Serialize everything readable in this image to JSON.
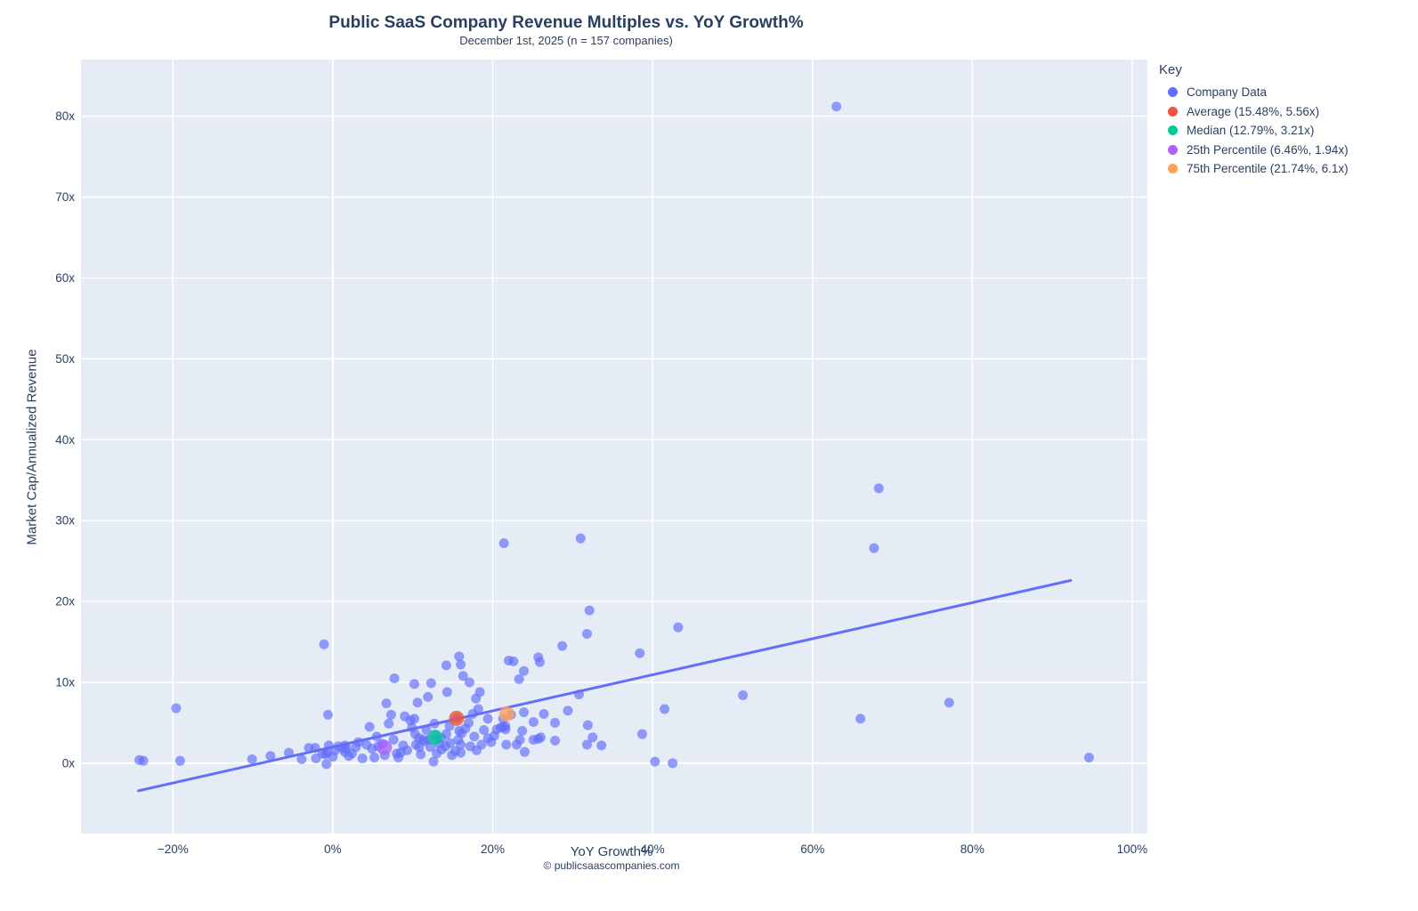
{
  "header": {
    "title": "Public SaaS Company Revenue Multiples vs. YoY Growth%",
    "subtitle": "December 1st, 2025 (n = 157 companies)"
  },
  "legend": {
    "title": "Key",
    "items": [
      {
        "label": "Company Data",
        "color": "#636efa"
      },
      {
        "label": "Average (15.48%, 5.56x)",
        "color": "#EF553B"
      },
      {
        "label": "Median (12.79%, 3.21x)",
        "color": "#00cc96"
      },
      {
        "label": "25th Percentile (6.46%, 1.94x)",
        "color": "#ab63fa"
      },
      {
        "label": "75th Percentile (21.74%, 6.1x)",
        "color": "#FFA15A"
      }
    ]
  },
  "footer": {
    "copyright": "© publicsaascompanies.com"
  },
  "chart_data": {
    "type": "scatter",
    "title": "Public SaaS Company Revenue Multiples vs. YoY Growth%",
    "subtitle": "December 1st, 2025 (n = 157 companies)",
    "xlabel": "YoY Growth%",
    "ylabel": "Market Cap/Annualized Revenue",
    "xlim": [
      -31.5,
      101.9
    ],
    "ylim": [
      -8.7,
      87.0
    ],
    "grid": true,
    "plot_bg": "#E5ECF6",
    "grid_color": "#ffffff",
    "font_color": "#2a3f5f",
    "legend_position": "top-right-outside",
    "xticks": [
      {
        "value": -20,
        "label": "−20%"
      },
      {
        "value": 0,
        "label": "0%"
      },
      {
        "value": 20,
        "label": "20%"
      },
      {
        "value": 40,
        "label": "40%"
      },
      {
        "value": 60,
        "label": "60%"
      },
      {
        "value": 80,
        "label": "80%"
      },
      {
        "value": 100,
        "label": "100%"
      }
    ],
    "yticks": [
      {
        "value": 0,
        "label": "0x"
      },
      {
        "value": 10,
        "label": "10x"
      },
      {
        "value": 20,
        "label": "20x"
      },
      {
        "value": 30,
        "label": "30x"
      },
      {
        "value": 40,
        "label": "40x"
      },
      {
        "value": 50,
        "label": "50x"
      },
      {
        "value": 60,
        "label": "60x"
      },
      {
        "value": 70,
        "label": "70x"
      },
      {
        "value": 80,
        "label": "80x"
      }
    ],
    "series": [
      {
        "name": "Company Data",
        "color": "#636efa",
        "opacity": 0.67,
        "size": 5.5,
        "points": [
          [
            -24.2,
            0.4
          ],
          [
            -23.7,
            0.3
          ],
          [
            -19.6,
            6.8
          ],
          [
            -19.1,
            0.3
          ],
          [
            -10.1,
            0.5
          ],
          [
            -7.8,
            0.9
          ],
          [
            -5.5,
            1.3
          ],
          [
            -3.9,
            0.5
          ],
          [
            -3.0,
            1.9
          ],
          [
            -2.2,
            1.9
          ],
          [
            -2.1,
            0.6
          ],
          [
            -1.3,
            1.2
          ],
          [
            -0.9,
            1.1
          ],
          [
            -0.7,
            1.3
          ],
          [
            -0.8,
            -0.1
          ],
          [
            -0.5,
            2.2
          ],
          [
            0.0,
            0.8
          ],
          [
            1.3,
            1.8
          ],
          [
            1.5,
            1.4
          ],
          [
            1.7,
            1.9
          ],
          [
            -1.1,
            14.7
          ],
          [
            -0.6,
            6.0
          ],
          [
            0.7,
            2.1
          ],
          [
            1.5,
            2.2
          ],
          [
            2.0,
            0.9
          ],
          [
            2.9,
            2.0
          ],
          [
            3.7,
            0.6
          ],
          [
            4.2,
            2.3
          ],
          [
            4.6,
            4.5
          ],
          [
            5.2,
            0.7
          ],
          [
            5.7,
            2.1
          ],
          [
            6.7,
            7.4
          ],
          [
            7.0,
            4.9
          ],
          [
            7.3,
            6.0
          ],
          [
            7.7,
            10.5
          ],
          [
            8.0,
            1.2
          ],
          [
            8.2,
            0.7
          ],
          [
            8.5,
            1.3
          ],
          [
            9.0,
            5.8
          ],
          [
            9.7,
            5.3
          ],
          [
            10.2,
            5.5
          ],
          [
            10.2,
            9.8
          ],
          [
            10.3,
            3.6
          ],
          [
            10.4,
            2.3
          ],
          [
            10.6,
            7.5
          ],
          [
            10.8,
            3.1
          ],
          [
            10.8,
            2.0
          ],
          [
            11.3,
            2.9
          ],
          [
            11.5,
            2.7
          ],
          [
            11.9,
            8.2
          ],
          [
            12.0,
            2.9
          ],
          [
            12.3,
            9.9
          ],
          [
            12.6,
            0.2
          ],
          [
            12.7,
            4.9
          ],
          [
            13.0,
            1.2
          ],
          [
            13.0,
            3.0
          ],
          [
            13.6,
            1.7
          ],
          [
            13.6,
            3.1
          ],
          [
            14.1,
            2.1
          ],
          [
            14.2,
            3.6
          ],
          [
            14.2,
            12.1
          ],
          [
            14.3,
            8.8
          ],
          [
            14.7,
            2.5
          ],
          [
            15.3,
            1.5
          ],
          [
            15.7,
            2.9
          ],
          [
            15.8,
            4.0
          ],
          [
            15.8,
            13.2
          ],
          [
            16.0,
            1.3
          ],
          [
            16.0,
            2.3
          ],
          [
            16.0,
            12.2
          ],
          [
            16.1,
            3.7
          ],
          [
            16.3,
            10.8
          ],
          [
            17.1,
            10.0
          ],
          [
            17.2,
            2.1
          ],
          [
            17.5,
            6.1
          ],
          [
            17.7,
            3.3
          ],
          [
            17.9,
            8.0
          ],
          [
            18.2,
            6.7
          ],
          [
            18.4,
            8.8
          ],
          [
            18.6,
            2.3
          ],
          [
            19.4,
            3.1
          ],
          [
            19.4,
            5.5
          ],
          [
            20.5,
            4.2
          ],
          [
            21.0,
            4.4
          ],
          [
            21.3,
            4.5
          ],
          [
            21.3,
            5.5
          ],
          [
            21.4,
            27.2
          ],
          [
            21.6,
            4.2
          ],
          [
            21.6,
            4.6
          ],
          [
            21.7,
            2.3
          ],
          [
            22.0,
            12.7
          ],
          [
            22.6,
            12.6
          ],
          [
            23.0,
            2.3
          ],
          [
            23.3,
            10.4
          ],
          [
            23.4,
            2.9
          ],
          [
            23.7,
            4.0
          ],
          [
            23.9,
            6.3
          ],
          [
            23.9,
            11.4
          ],
          [
            24.0,
            1.4
          ],
          [
            25.1,
            2.9
          ],
          [
            25.1,
            5.1
          ],
          [
            25.7,
            3.0
          ],
          [
            25.7,
            13.1
          ],
          [
            25.9,
            12.5
          ],
          [
            26.0,
            3.2
          ],
          [
            26.4,
            6.1
          ],
          [
            27.8,
            2.8
          ],
          [
            27.8,
            5.0
          ],
          [
            28.7,
            14.5
          ],
          [
            29.4,
            6.5
          ],
          [
            30.8,
            8.5
          ],
          [
            31.0,
            27.8
          ],
          [
            31.8,
            2.3
          ],
          [
            31.8,
            16.0
          ],
          [
            31.9,
            4.7
          ],
          [
            32.1,
            18.9
          ],
          [
            32.5,
            3.2
          ],
          [
            33.6,
            2.2
          ],
          [
            38.4,
            13.6
          ],
          [
            38.7,
            3.6
          ],
          [
            40.3,
            0.2
          ],
          [
            41.5,
            6.7
          ],
          [
            42.5,
            0.0
          ],
          [
            43.2,
            16.8
          ],
          [
            51.3,
            8.4
          ],
          [
            63.0,
            81.2
          ],
          [
            66.0,
            5.5
          ],
          [
            67.7,
            26.6
          ],
          [
            68.3,
            34.0
          ],
          [
            77.1,
            7.5
          ],
          [
            94.6,
            0.7
          ],
          [
            0.3,
            1.6
          ],
          [
            2.4,
            1.2
          ],
          [
            3.2,
            2.6
          ],
          [
            4.9,
            1.8
          ],
          [
            5.5,
            3.3
          ],
          [
            6.2,
            2.4
          ],
          [
            6.5,
            1.0
          ],
          [
            7.6,
            2.9
          ],
          [
            8.8,
            2.2
          ],
          [
            9.3,
            1.6
          ],
          [
            9.9,
            4.4
          ],
          [
            11.0,
            1.1
          ],
          [
            11.7,
            4.1
          ],
          [
            12.2,
            2.0
          ],
          [
            12.9,
            3.5
          ],
          [
            13.3,
            2.4
          ],
          [
            14.6,
            4.6
          ],
          [
            14.9,
            1.0
          ],
          [
            15.5,
            5.6
          ],
          [
            16.6,
            4.3
          ],
          [
            17.0,
            5.0
          ],
          [
            18.0,
            1.6
          ],
          [
            18.9,
            4.1
          ],
          [
            19.8,
            2.6
          ],
          [
            20.2,
            3.4
          ],
          [
            22.3,
            6.0
          ]
        ]
      }
    ],
    "markers": [
      {
        "name": "Average",
        "x": 15.48,
        "y": 5.56,
        "color": "#EF553B",
        "size": 8.5
      },
      {
        "name": "Median",
        "x": 12.79,
        "y": 3.21,
        "color": "#00cc96",
        "size": 8.5
      },
      {
        "name": "25th Percentile",
        "x": 6.46,
        "y": 1.94,
        "color": "#ab63fa",
        "size": 8.5
      },
      {
        "name": "75th Percentile",
        "x": 21.74,
        "y": 6.1,
        "color": "#FFA15A",
        "size": 8.5
      }
    ],
    "trendline": {
      "x1": -24.3,
      "y1": -3.4,
      "x2": 92.3,
      "y2": 22.6,
      "color": "#636efa",
      "width": 3
    }
  }
}
